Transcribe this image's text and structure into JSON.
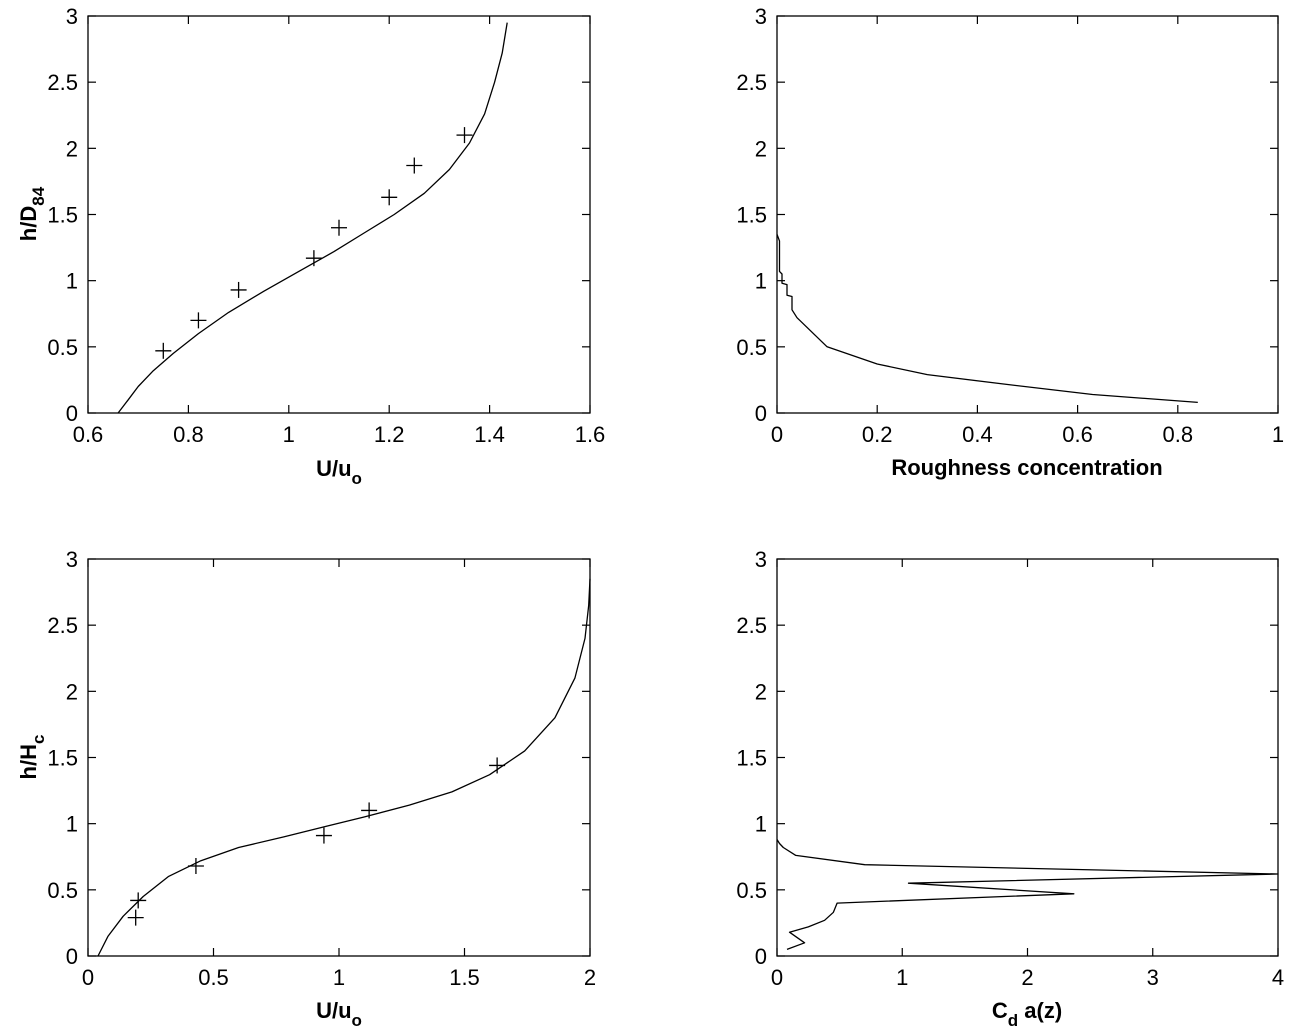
{
  "figure": {
    "panels": [
      {
        "id": "panel-a",
        "xlabel": "U/u_o"
      },
      {
        "id": "panel-b",
        "xlabel": "Roughness concentration"
      },
      {
        "id": "panel-c",
        "xlabel": "U/u_o"
      },
      {
        "id": "panel-d",
        "xlabel": "C_d a(z)"
      }
    ]
  },
  "chart_data": [
    {
      "type": "line",
      "xlabel": "U/u_o",
      "ylabel": "h/D_84",
      "xlim": [
        0.6,
        1.6
      ],
      "ylim": [
        0,
        3
      ],
      "xticks": [
        "0.6",
        "0.8",
        "1",
        "1.2",
        "1.4",
        "1.6"
      ],
      "yticks": [
        "0",
        "0.5",
        "1",
        "1.5",
        "2",
        "2.5",
        "3"
      ],
      "grid": false,
      "series": [
        {
          "kind": "line",
          "x": [
            0.66,
            0.68,
            0.7,
            0.73,
            0.77,
            0.82,
            0.88,
            0.95,
            1.02,
            1.09,
            1.15,
            1.21,
            1.27,
            1.32,
            1.36,
            1.39,
            1.41,
            1.425,
            1.435
          ],
          "y": [
            0.0,
            0.1,
            0.2,
            0.32,
            0.45,
            0.6,
            0.76,
            0.92,
            1.07,
            1.22,
            1.36,
            1.5,
            1.66,
            1.84,
            2.04,
            2.26,
            2.5,
            2.72,
            2.95
          ]
        },
        {
          "kind": "scatter",
          "marker": "+",
          "x": [
            0.75,
            0.82,
            0.9,
            1.05,
            1.1,
            1.2,
            1.25,
            1.35
          ],
          "y": [
            0.47,
            0.7,
            0.93,
            1.17,
            1.4,
            1.63,
            1.87,
            2.1
          ]
        }
      ]
    },
    {
      "type": "line",
      "xlabel": "Roughness concentration",
      "ylabel": "",
      "xlim": [
        0,
        1
      ],
      "ylim": [
        0,
        3
      ],
      "xticks": [
        "0",
        "0.2",
        "0.4",
        "0.6",
        "0.8",
        "1"
      ],
      "yticks": [
        "0",
        "0.5",
        "1",
        "1.5",
        "2",
        "2.5",
        "3"
      ],
      "grid": false,
      "series": [
        {
          "kind": "line",
          "x": [
            0.0,
            0.005,
            0.005,
            0.01,
            0.01,
            0.02,
            0.02,
            0.03,
            0.03,
            0.04,
            0.1,
            0.2,
            0.3,
            0.45,
            0.63,
            0.84
          ],
          "y": [
            1.35,
            1.3,
            1.07,
            1.05,
            0.98,
            0.97,
            0.89,
            0.88,
            0.78,
            0.72,
            0.5,
            0.37,
            0.29,
            0.22,
            0.14,
            0.08
          ]
        }
      ]
    },
    {
      "type": "line",
      "xlabel": "U/u_o",
      "ylabel": "h/H_c",
      "xlim": [
        0,
        2
      ],
      "ylim": [
        0,
        3
      ],
      "xticks": [
        "0",
        "0.5",
        "1",
        "1.5",
        "2"
      ],
      "yticks": [
        "0",
        "0.5",
        "1",
        "1.5",
        "2",
        "2.5",
        "3"
      ],
      "grid": false,
      "series": [
        {
          "kind": "line",
          "x": [
            0.04,
            0.08,
            0.14,
            0.22,
            0.32,
            0.45,
            0.6,
            0.78,
            0.95,
            1.1,
            1.28,
            1.45,
            1.6,
            1.74,
            1.86,
            1.94,
            1.98,
            1.995,
            2.0
          ],
          "y": [
            0.0,
            0.15,
            0.3,
            0.45,
            0.6,
            0.72,
            0.82,
            0.9,
            0.98,
            1.05,
            1.14,
            1.24,
            1.37,
            1.55,
            1.8,
            2.1,
            2.4,
            2.65,
            2.85
          ]
        },
        {
          "kind": "scatter",
          "marker": "+",
          "x": [
            0.19,
            0.2,
            0.43,
            0.94,
            1.12,
            1.63
          ],
          "y": [
            0.29,
            0.42,
            0.68,
            0.91,
            1.1,
            1.44
          ]
        }
      ]
    },
    {
      "type": "line",
      "xlabel": "C_d a(z)",
      "ylabel": "",
      "xlim": [
        0,
        4
      ],
      "ylim": [
        0,
        3
      ],
      "xticks": [
        "0",
        "1",
        "2",
        "3",
        "4"
      ],
      "yticks": [
        "0",
        "0.5",
        "1",
        "1.5",
        "2",
        "2.5",
        "3"
      ],
      "grid": false,
      "series": [
        {
          "kind": "line",
          "x": [
            0.0,
            0.02,
            0.05,
            0.15,
            0.7,
            4.0,
            1.05,
            2.37,
            0.48,
            0.45,
            0.38,
            0.25,
            0.1,
            0.22,
            0.08
          ],
          "y": [
            0.88,
            0.85,
            0.82,
            0.76,
            0.69,
            0.62,
            0.55,
            0.47,
            0.4,
            0.33,
            0.27,
            0.22,
            0.18,
            0.1,
            0.05
          ]
        }
      ]
    }
  ]
}
